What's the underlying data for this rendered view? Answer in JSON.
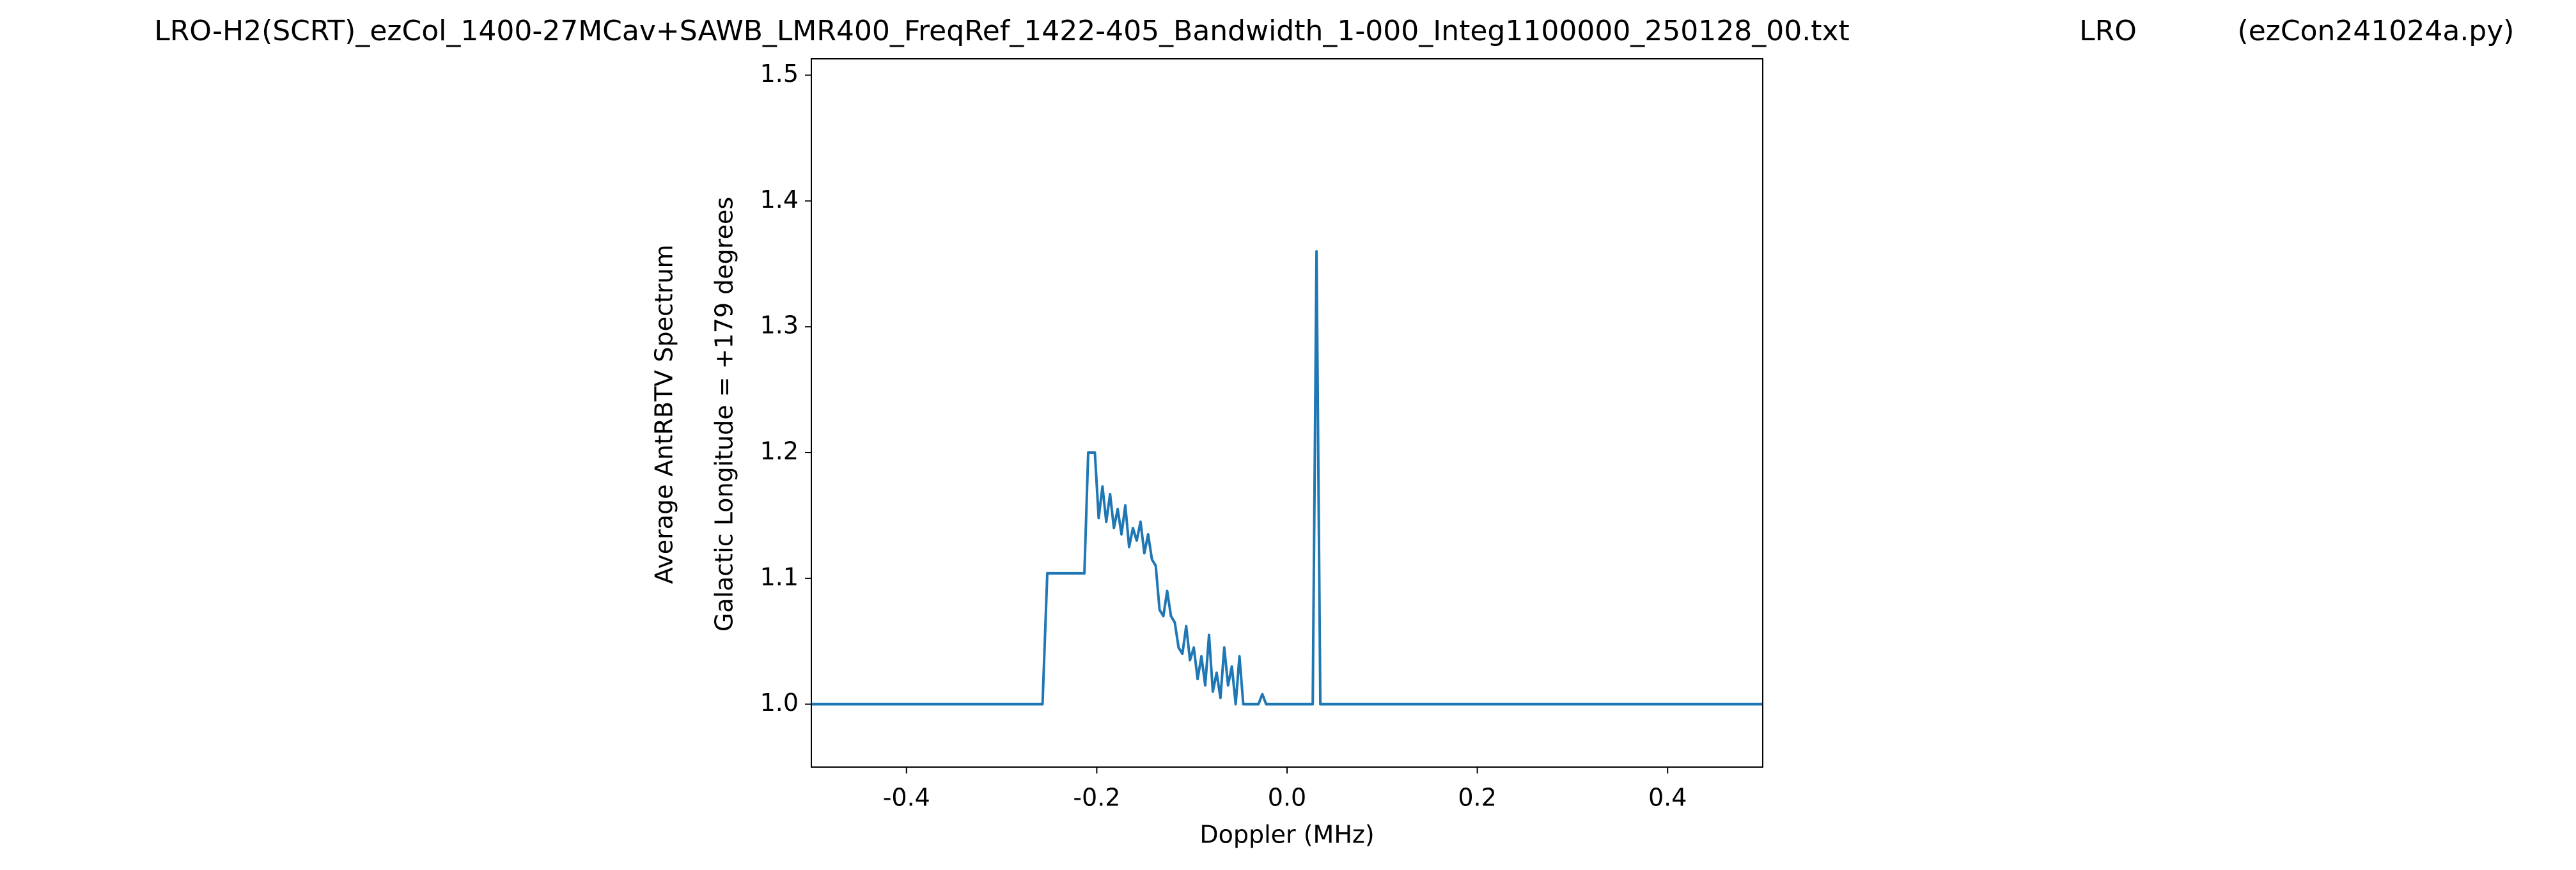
{
  "chart_data": {
    "type": "line",
    "title": "LRO-H2(SCRT)_ezCol_1400-27MCav+SAWB_LMR400_FreqRef_1422-405_Bandwidth_1-000_Integ1100000_250128_00.txt",
    "annotations": [
      "LRO",
      "(ezCon241024a.py)"
    ],
    "xlabel": "Doppler (MHz)",
    "ylabel": [
      "Average AntRBTV Spectrum",
      "Galactic Longitude = +179 degrees"
    ],
    "xlim": [
      -0.5,
      0.5
    ],
    "xticks": [
      -0.4,
      -0.2,
      {
        "value": 0,
        "label": "0.0"
      },
      0.2,
      0.4
    ],
    "ylim": [
      0.95,
      1.513
    ],
    "yticks": [
      {
        "value": 1,
        "label": "1.0"
      },
      1.1,
      1.2,
      1.3,
      1.4,
      1.5
    ],
    "series": [
      {
        "color": "#1f77b4",
        "x": [
          -0.5,
          -0.257,
          -0.252,
          -0.213,
          -0.209,
          -0.202,
          -0.198,
          -0.194,
          -0.19,
          -0.186,
          -0.182,
          -0.178,
          -0.174,
          -0.17,
          -0.166,
          -0.162,
          -0.158,
          -0.154,
          -0.15,
          -0.146,
          -0.142,
          -0.138,
          -0.134,
          -0.13,
          -0.126,
          -0.122,
          -0.118,
          -0.114,
          -0.11,
          -0.106,
          -0.102,
          -0.098,
          -0.094,
          -0.09,
          -0.086,
          -0.082,
          -0.078,
          -0.074,
          -0.07,
          -0.066,
          -0.062,
          -0.058,
          -0.054,
          -0.05,
          -0.046,
          -0.03,
          -0.026,
          -0.022,
          0.027,
          0.031,
          0.035,
          0.5
        ],
        "values": [
          1.0,
          1.0,
          1.104,
          1.104,
          1.2,
          1.2,
          1.148,
          1.173,
          1.145,
          1.167,
          1.14,
          1.155,
          1.135,
          1.158,
          1.125,
          1.14,
          1.13,
          1.145,
          1.12,
          1.135,
          1.115,
          1.11,
          1.075,
          1.07,
          1.09,
          1.07,
          1.065,
          1.045,
          1.04,
          1.062,
          1.035,
          1.045,
          1.02,
          1.038,
          1.015,
          1.055,
          1.01,
          1.025,
          1.005,
          1.045,
          1.015,
          1.03,
          1.0,
          1.038,
          1.0,
          1.0,
          1.008,
          1.0,
          1.0,
          1.36,
          1.0,
          1.0
        ]
      }
    ]
  }
}
